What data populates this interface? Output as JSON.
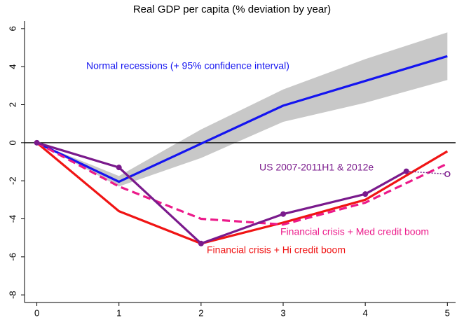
{
  "chart_data": {
    "type": "line",
    "title": "Real GDP per capita (% deviation by year)",
    "x": [
      0,
      1,
      2,
      3,
      4,
      5
    ],
    "xlim": [
      -0.15,
      5.1
    ],
    "ylim": [
      -8.4,
      6.4
    ],
    "xticks": [
      0,
      1,
      2,
      3,
      4,
      5
    ],
    "yticks": [
      -8,
      -6,
      -4,
      -2,
      0,
      2,
      4,
      6
    ],
    "hline": 0,
    "band": {
      "color": "#c8c8c8",
      "upper": [
        0,
        -1.75,
        0.7,
        2.8,
        4.4,
        5.8
      ],
      "lower": [
        0,
        -2.3,
        -0.8,
        1.1,
        2.1,
        3.3
      ]
    },
    "series": [
      {
        "name": "Normal recessions (+ 95% confidence interval)",
        "color": "#1414f0",
        "dash": false,
        "values": [
          0,
          -2.05,
          -0.05,
          1.95,
          3.25,
          4.55
        ]
      },
      {
        "name": "Financial crisis + Hi credit boom",
        "color": "#f01414",
        "dash": false,
        "values": [
          0,
          -3.6,
          -5.3,
          -4.2,
          -3.0,
          -0.45
        ]
      },
      {
        "name": "Financial crisis + Med credit boom",
        "color": "#ec1a8a",
        "dash": true,
        "values": [
          0,
          -2.3,
          -4.0,
          -4.3,
          -3.15,
          -1.1
        ]
      },
      {
        "name": "US 2007-2011H1 & 2012e",
        "color": "#7a1a8c",
        "dash": false,
        "markers": true,
        "x": [
          0,
          1,
          2,
          3,
          4,
          4.5
        ],
        "values": [
          0,
          -1.3,
          -5.3,
          -3.75,
          -2.7,
          -1.5
        ]
      }
    ],
    "projection": {
      "x": 5,
      "value": -1.65
    }
  }
}
